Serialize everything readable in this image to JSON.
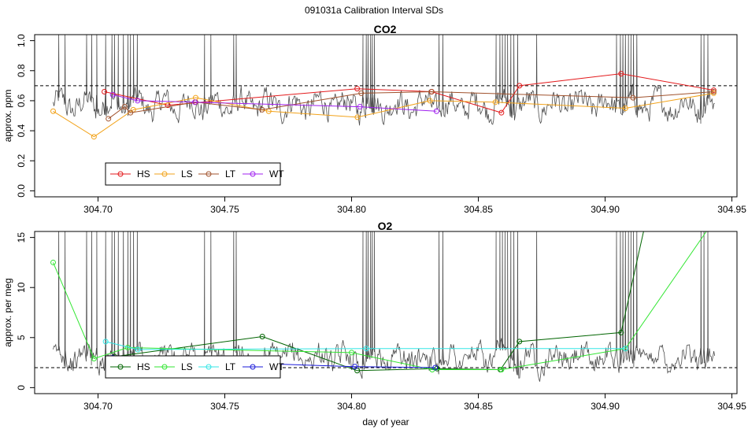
{
  "suptitle": "091031a   Calibration Interval SDs",
  "xlabel": "day of year",
  "colors": {
    "trace": "#4d4d4d",
    "threshold": "#000000",
    "CO2": {
      "HS": "#e31a1c",
      "LS": "#f2a31b",
      "LT": "#a0522d",
      "WT": "#a020f0"
    },
    "O2": {
      "HS": "#006400",
      "LS": "#33e633",
      "LT": "#33e6e6",
      "WT": "#1a1ad9"
    }
  },
  "chart_data": [
    {
      "type": "line",
      "title": "CO2",
      "ylabel": "approx. ppm",
      "xlabel": "",
      "xlim": [
        304.675,
        304.952
      ],
      "ylim": [
        -0.04,
        1.04
      ],
      "xticks": [
        304.7,
        304.75,
        304.8,
        304.85,
        304.9,
        304.95
      ],
      "xtick_labels": [
        "304.70",
        "304.75",
        "304.80",
        "304.85",
        "304.90",
        "304.95"
      ],
      "yticks": [
        0.0,
        0.2,
        0.4,
        0.6,
        0.8,
        1.0
      ],
      "ytick_labels": [
        "0.0",
        "0.2",
        "0.4",
        "0.6",
        "0.8",
        "1.0"
      ],
      "threshold": 0.7,
      "trace": {
        "x_start": 304.6823,
        "x_end": 304.9432,
        "baseline": 0.57,
        "amplitude": 0.085,
        "peak": 1.05
      },
      "spike_x": [
        304.6845,
        304.687,
        304.6955,
        304.6975,
        304.6995,
        304.703,
        304.7055,
        304.7065,
        304.708,
        304.71,
        304.7118,
        304.7128,
        304.714,
        304.7155,
        304.742,
        304.7445,
        304.7535,
        304.7545,
        304.8045,
        304.8058,
        304.8065,
        304.8075,
        304.8082,
        304.809,
        304.8345,
        304.836,
        304.857,
        304.8585,
        304.8595,
        304.8605,
        304.8615,
        304.8628,
        304.864,
        304.8655,
        304.873,
        304.9045,
        304.906,
        304.907,
        304.908,
        304.9092,
        304.9102,
        304.9112,
        304.9125,
        304.9378,
        304.939,
        304.9405
      ],
      "legend": {
        "position": "bottom-left",
        "entries": [
          "HS",
          "LS",
          "LT",
          "WT"
        ]
      },
      "series": [
        {
          "name": "HS",
          "x": [
            304.7025,
            304.7275,
            304.8022,
            304.8316,
            304.8591,
            304.8662,
            304.9063,
            304.9428
          ],
          "y": [
            0.66,
            0.57,
            0.68,
            0.66,
            0.52,
            0.7,
            0.78,
            0.67
          ]
        },
        {
          "name": "LS",
          "x": [
            304.6823,
            304.6984,
            304.7139,
            304.7385,
            304.7673,
            304.8023,
            304.8309,
            304.8567,
            304.908,
            304.9428
          ],
          "y": [
            0.53,
            0.36,
            0.54,
            0.62,
            0.53,
            0.49,
            0.6,
            0.59,
            0.55,
            0.65
          ]
        },
        {
          "name": "LT",
          "x": [
            304.7041,
            304.7105,
            304.7128,
            304.7385,
            304.7647,
            304.8038,
            304.8315,
            304.911,
            304.9428
          ],
          "y": [
            0.48,
            0.56,
            0.52,
            0.59,
            0.54,
            0.65,
            0.66,
            0.62,
            0.66
          ]
        },
        {
          "name": "WT",
          "x": [
            304.7058,
            304.7156,
            304.7382,
            304.8033,
            304.8335
          ],
          "y": [
            0.64,
            0.6,
            0.59,
            0.56,
            0.53
          ]
        }
      ]
    },
    {
      "type": "line",
      "title": "O2",
      "ylabel": "approx. per meg",
      "xlabel": "day of year",
      "xlim": [
        304.675,
        304.952
      ],
      "ylim": [
        -0.6,
        15.6
      ],
      "xticks": [
        304.7,
        304.75,
        304.8,
        304.85,
        304.9,
        304.95
      ],
      "xtick_labels": [
        "304.70",
        "304.75",
        "304.80",
        "304.85",
        "304.90",
        "304.95"
      ],
      "yticks": [
        0,
        5,
        10,
        15
      ],
      "ytick_labels": [
        "0",
        "5",
        "10",
        "15"
      ],
      "threshold": 2,
      "trace": {
        "x_start": 304.6823,
        "x_end": 304.9432,
        "baseline": 3.0,
        "amplitude": 1.2,
        "peak": 16.5
      },
      "spike_x": [
        304.6845,
        304.687,
        304.6955,
        304.6975,
        304.6995,
        304.703,
        304.7055,
        304.7065,
        304.708,
        304.71,
        304.7118,
        304.7128,
        304.714,
        304.7155,
        304.742,
        304.7445,
        304.7535,
        304.7545,
        304.8045,
        304.8058,
        304.8065,
        304.8075,
        304.8082,
        304.809,
        304.8345,
        304.836,
        304.857,
        304.8585,
        304.8595,
        304.8605,
        304.8615,
        304.8628,
        304.864,
        304.8655,
        304.873,
        304.9045,
        304.906,
        304.907,
        304.908,
        304.9092,
        304.9102,
        304.9112,
        304.9125,
        304.9378,
        304.939,
        304.9405
      ],
      "legend": {
        "position": "bottom-left",
        "entries": [
          "HS",
          "LS",
          "LT",
          "WT"
        ]
      },
      "series": [
        {
          "name": "HS",
          "x": [
            304.7065,
            304.7648,
            304.8022,
            304.8337,
            304.8587,
            304.8662,
            304.9063,
            304.9155
          ],
          "y": [
            3.1,
            5.1,
            1.7,
            1.9,
            1.8,
            4.6,
            5.5,
            16.0
          ]
        },
        {
          "name": "LS",
          "x": [
            304.6823,
            304.6984,
            304.7117,
            304.8,
            304.8318,
            304.8591,
            304.908,
            304.941
          ],
          "y": [
            12.5,
            2.9,
            4.0,
            3.5,
            1.8,
            1.8,
            3.9,
            16.0
          ]
        },
        {
          "name": "LT",
          "x": [
            304.703,
            304.7157,
            304.8058,
            304.908
          ],
          "y": [
            4.6,
            3.8,
            3.9,
            3.9
          ]
        },
        {
          "name": "WT",
          "x": [
            304.7058,
            304.7157,
            304.8013,
            304.833
          ],
          "y": [
            3.0,
            2.8,
            2.1,
            2.0
          ]
        }
      ]
    }
  ]
}
